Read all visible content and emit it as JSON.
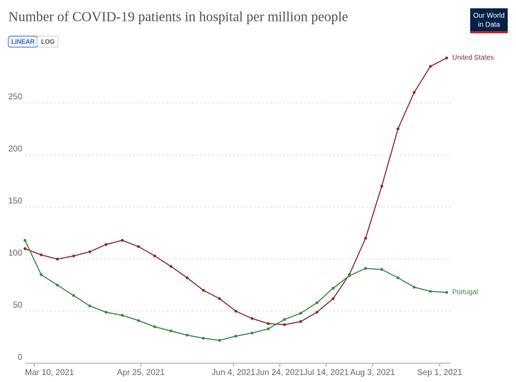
{
  "chart_data": {
    "type": "line",
    "title": "Number of COVID-19 patients in hospital per million people",
    "scale_options": [
      "LINEAR",
      "LOG"
    ],
    "logo": [
      "Our World",
      "in Data"
    ],
    "x": [
      "2021-03-06",
      "2021-03-13",
      "2021-03-20",
      "2021-03-27",
      "2021-04-03",
      "2021-04-10",
      "2021-04-17",
      "2021-04-24",
      "2021-05-01",
      "2021-05-08",
      "2021-05-15",
      "2021-05-22",
      "2021-05-29",
      "2021-06-05",
      "2021-06-12",
      "2021-06-19",
      "2021-06-26",
      "2021-07-03",
      "2021-07-10",
      "2021-07-17",
      "2021-07-24",
      "2021-07-31",
      "2021-08-07",
      "2021-08-14",
      "2021-08-21",
      "2021-08-28",
      "2021-09-04"
    ],
    "xlim": [
      "2021-03-06",
      "2021-09-04"
    ],
    "xticks": [
      {
        "value": "2021-03-10",
        "label": "Mar 10, 2021"
      },
      {
        "value": "2021-04-25",
        "label": "Apr 25, 2021"
      },
      {
        "value": "2021-06-04",
        "label": "Jun 4, 2021"
      },
      {
        "value": "2021-06-24",
        "label": "Jun 24, 2021"
      },
      {
        "value": "2021-07-14",
        "label": "Jul 14, 2021"
      },
      {
        "value": "2021-08-03",
        "label": "Aug 3, 2021"
      },
      {
        "value": "2021-09-01",
        "label": "Sep 1, 2021"
      }
    ],
    "ylim": [
      0,
      300
    ],
    "yticks": [
      0,
      50,
      100,
      150,
      200,
      250
    ],
    "grid": true,
    "series": [
      {
        "name": "United States",
        "color": "#8b2e33",
        "values": [
          110,
          104,
          100,
          103,
          107,
          114,
          118,
          112,
          103,
          93,
          82,
          70,
          62,
          50,
          43,
          38,
          37,
          40,
          49,
          62,
          85,
          120,
          170,
          225,
          260,
          285,
          293
        ]
      },
      {
        "name": "Portugal",
        "color": "#3a8a40",
        "values": [
          118,
          85,
          75,
          65,
          55,
          49,
          46,
          41,
          35,
          31,
          27,
          24,
          22,
          26,
          29,
          33,
          42,
          48,
          58,
          72,
          84,
          91,
          90,
          82,
          73,
          69,
          68
        ]
      }
    ]
  }
}
